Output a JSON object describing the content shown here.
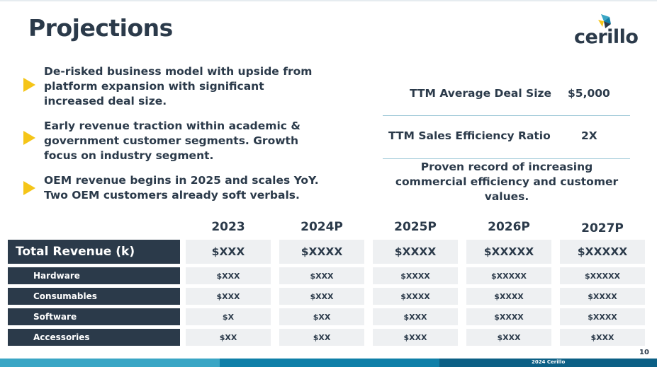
{
  "slide": {
    "title": "Projections",
    "page_number": "10",
    "footer": "2024 Cerillo"
  },
  "logo": {
    "text": "cerillo",
    "icon": "cerillo-logo-icon"
  },
  "bullets": [
    {
      "lines": [
        "De-risked business model with upside from",
        "platform expansion with significant",
        "increased deal size."
      ]
    },
    {
      "lines": [
        "Early revenue traction within academic &",
        "government customer segments. Growth",
        "focus on industry segment."
      ]
    },
    {
      "lines": [
        "OEM revenue begins in 2025 and scales YoY.",
        "Two OEM customers already soft verbals."
      ]
    }
  ],
  "metrics": [
    {
      "label": "TTM Average Deal Size",
      "value": "$5,000"
    },
    {
      "label": "TTM Sales Efficiency Ratio",
      "value": "2X"
    }
  ],
  "proven": {
    "lines": [
      "Proven record of increasing",
      "commercial efficiency and customer",
      "values."
    ]
  },
  "table": {
    "years": [
      "2023",
      "2024P",
      "2025P",
      "2026P",
      "2027P"
    ],
    "rows": [
      {
        "label": "Total Revenue (k)",
        "values": [
          "$XXX",
          "$XXXX",
          "$XXXX",
          "$XXXXX",
          "$XXXXX"
        ]
      },
      {
        "label": "Hardware",
        "values": [
          "$XXX",
          "$XXX",
          "$XXXX",
          "$XXXXX",
          "$XXXXX"
        ]
      },
      {
        "label": "Consumables",
        "values": [
          "$XXX",
          "$XXX",
          "$XXXX",
          "$XXXX",
          "$XXXX"
        ]
      },
      {
        "label": "Software",
        "values": [
          "$X",
          "$XX",
          "$XXX",
          "$XXXX",
          "$XXXX"
        ]
      },
      {
        "label": "Accessories",
        "values": [
          "$XX",
          "$XX",
          "$XXX",
          "$XXX",
          "$XXX"
        ]
      }
    ]
  },
  "colors": {
    "navy": "#2b3a4a",
    "accent_yellow": "#f5c518",
    "teal": "#3aa6c5",
    "cell_bg": "#eef0f2"
  }
}
